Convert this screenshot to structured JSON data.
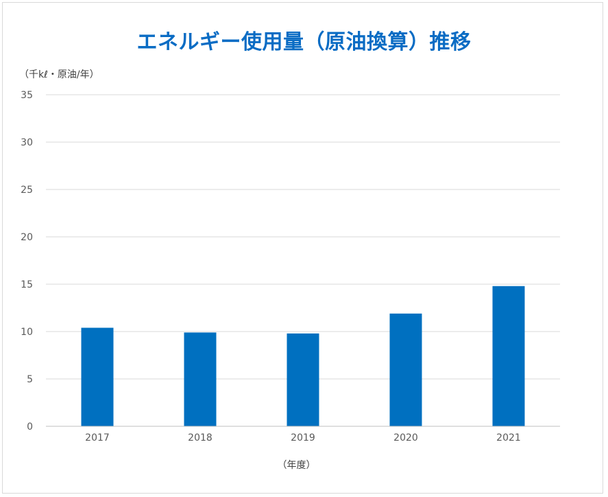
{
  "chart_data": {
    "type": "bar",
    "title": "エネルギー使用量（原油換算）推移",
    "ylabel": "（千kℓ・原油/年）",
    "xlabel": "（年度）",
    "categories": [
      "2017",
      "2018",
      "2019",
      "2020",
      "2021"
    ],
    "values": [
      10.4,
      9.9,
      9.8,
      11.9,
      14.8
    ],
    "ylim": [
      0,
      35
    ],
    "yticks": [
      0,
      5,
      10,
      15,
      20,
      25,
      30,
      35
    ],
    "grid": true,
    "legend": "none",
    "colors": {
      "bar": "#0070c0",
      "title": "#0a6cc4",
      "grid": "#d9d9d9",
      "axis": "#bfbfbf"
    }
  }
}
